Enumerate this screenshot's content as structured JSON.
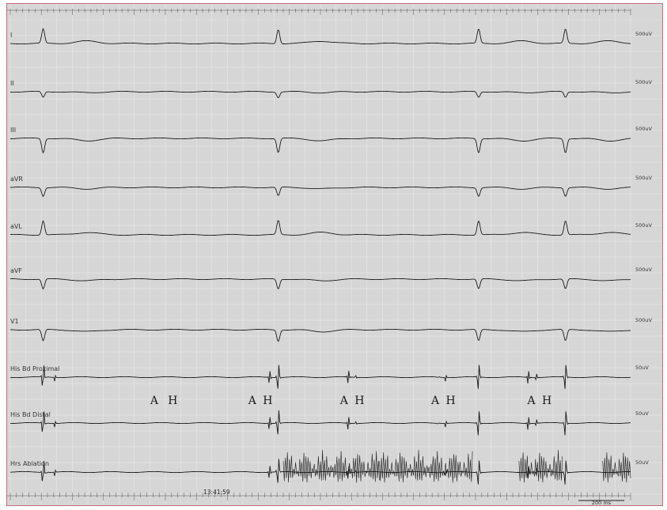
{
  "chart_data": {
    "type": "line",
    "title": "",
    "xlabel": "",
    "ylabel": "",
    "colors": {
      "trace": "#1a1a1a",
      "background": "#d6d6d6",
      "border": "#c46a7a",
      "grid": "#ffffff"
    },
    "beats": [
      {
        "a": 0.06,
        "h": 0.072,
        "v": 0.053
      },
      {
        "a": 0.418,
        "h": 0.43,
        "v": 0.432
      },
      {
        "a": 0.545,
        "h": 0.557,
        "v": null
      },
      {
        "a": 0.69,
        "h": 0.702,
        "v": 0.755
      },
      {
        "a": 0.835,
        "h": 0.848,
        "v": 0.895
      }
    ],
    "leads": [
      {
        "name": "I",
        "label": "I",
        "scale": "500uV",
        "polarity": 1
      },
      {
        "name": "II",
        "label": "II",
        "scale": "500uV",
        "polarity": -0.4
      },
      {
        "name": "III",
        "label": "III",
        "scale": "500uV",
        "polarity": -1
      },
      {
        "name": "aVR",
        "label": "aVR",
        "scale": "500uV",
        "polarity": -0.6
      },
      {
        "name": "aVL",
        "label": "aVL",
        "scale": "500uV",
        "polarity": 1
      },
      {
        "name": "aVF",
        "label": "aVF",
        "scale": "500uV",
        "polarity": -0.7
      },
      {
        "name": "V1",
        "label": "V1",
        "scale": "500uV",
        "polarity": -0.8
      },
      {
        "name": "His Bd Proximal",
        "label": "His Bd Proximal",
        "scale": "50uV",
        "polarity": 1
      },
      {
        "name": "His Bd Distal",
        "label": "His Bd Distal",
        "scale": "50uV",
        "polarity": 1
      },
      {
        "name": "Hrs Ablation",
        "label": "Hrs Ablation",
        "scale": "50uV",
        "polarity": 1
      }
    ],
    "annotations": [
      {
        "text": "A",
        "x": 0.232
      },
      {
        "text": "H",
        "x": 0.262
      },
      {
        "text": "A",
        "x": 0.39
      },
      {
        "text": "H",
        "x": 0.415
      },
      {
        "text": "A",
        "x": 0.538
      },
      {
        "text": "H",
        "x": 0.563
      },
      {
        "text": "A",
        "x": 0.685
      },
      {
        "text": "H",
        "x": 0.71
      },
      {
        "text": "A",
        "x": 0.84
      },
      {
        "text": "H",
        "x": 0.865
      }
    ],
    "ablation_segments": [
      [
        0.44,
        0.595
      ],
      [
        0.595,
        0.745
      ],
      [
        0.82,
        0.89
      ],
      [
        0.955,
        1.0
      ]
    ],
    "timestamp": "13:41:59",
    "scale_bar_label": "200 ms"
  }
}
